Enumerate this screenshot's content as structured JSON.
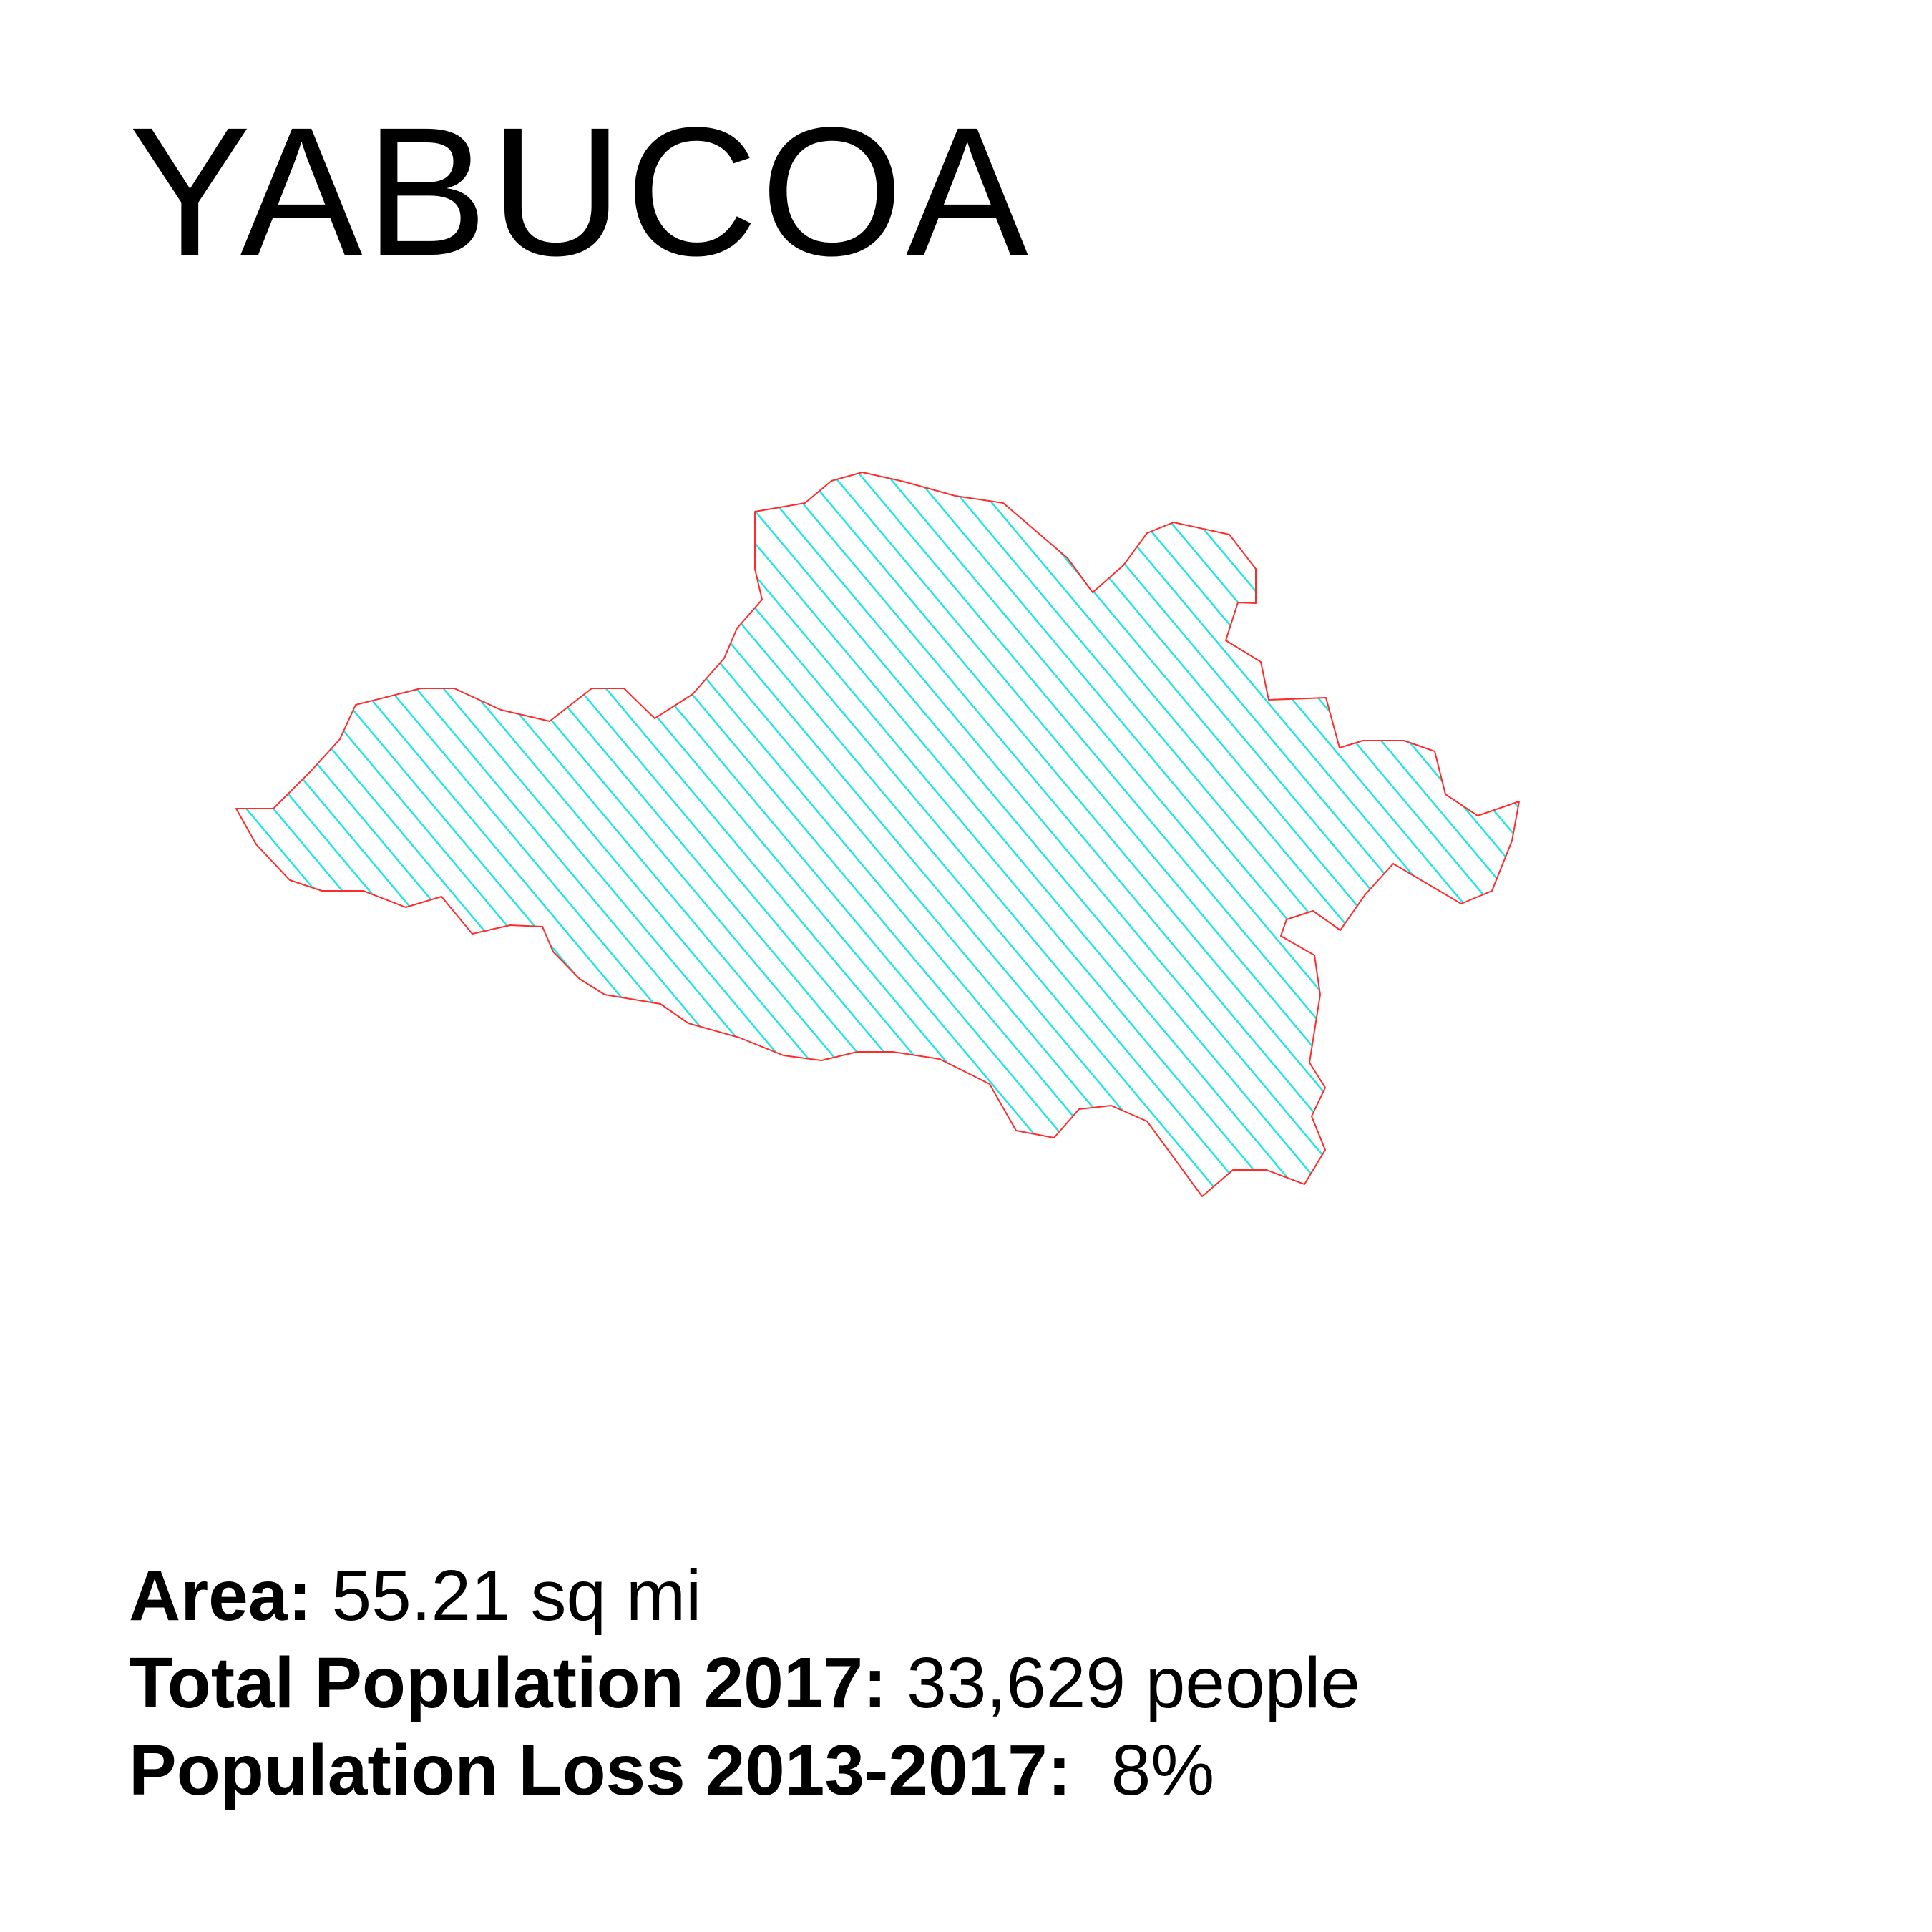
{
  "title": "YABUCOA",
  "colors": {
    "hatch": "#22E5E5",
    "outline": "#FF2B2B",
    "background": "#FFFFFF",
    "text": "#000000"
  },
  "stats": {
    "area": {
      "label": "Area:",
      "value": " 55.21 sq mi"
    },
    "population": {
      "label": "Total Population 2017:",
      "value": " 33,629 people"
    },
    "loss": {
      "label": "Population Loss 2013-2017:",
      "value": "  8%"
    }
  }
}
